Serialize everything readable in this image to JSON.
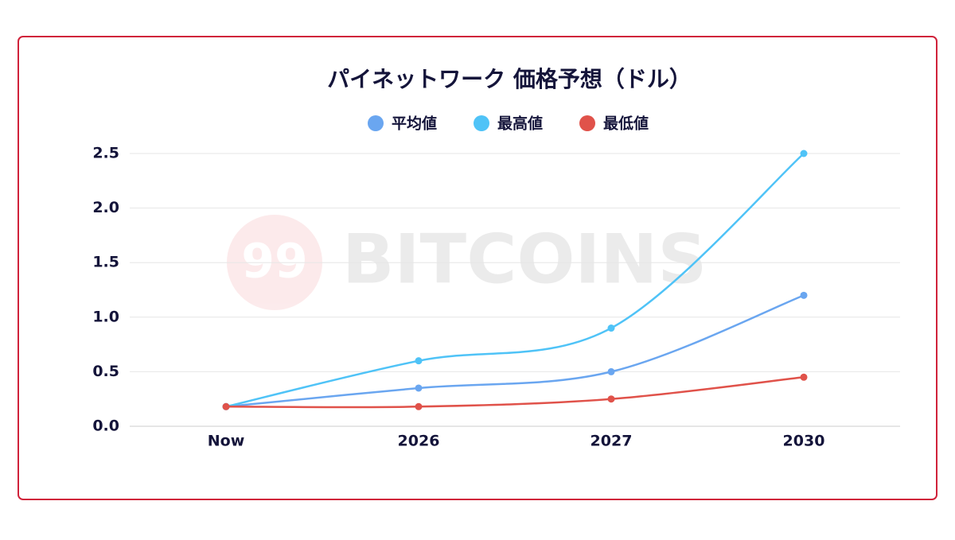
{
  "chart_data": {
    "type": "line",
    "title": "パイネットワーク 価格予想（ドル）",
    "categories": [
      "Now",
      "2026",
      "2027",
      "2030"
    ],
    "series": [
      {
        "name": "平均値",
        "color": "#6aa6f0",
        "values": [
          0.18,
          0.35,
          0.5,
          1.2
        ]
      },
      {
        "name": "最高値",
        "color": "#4fc3f7",
        "values": [
          0.18,
          0.6,
          0.9,
          2.5
        ]
      },
      {
        "name": "最低値",
        "color": "#e0524a",
        "values": [
          0.18,
          0.18,
          0.25,
          0.45
        ]
      }
    ],
    "ylim": [
      0,
      2.5
    ],
    "yticks": [
      {
        "value": 0,
        "label": "0.0"
      },
      0.5,
      {
        "value": 1,
        "label": "1.0"
      },
      1.5,
      {
        "value": 2,
        "label": "2.0"
      },
      2.5
    ],
    "grid": true,
    "legend": "top",
    "watermark": {
      "badge": "99",
      "text": "BITCOINS"
    }
  }
}
